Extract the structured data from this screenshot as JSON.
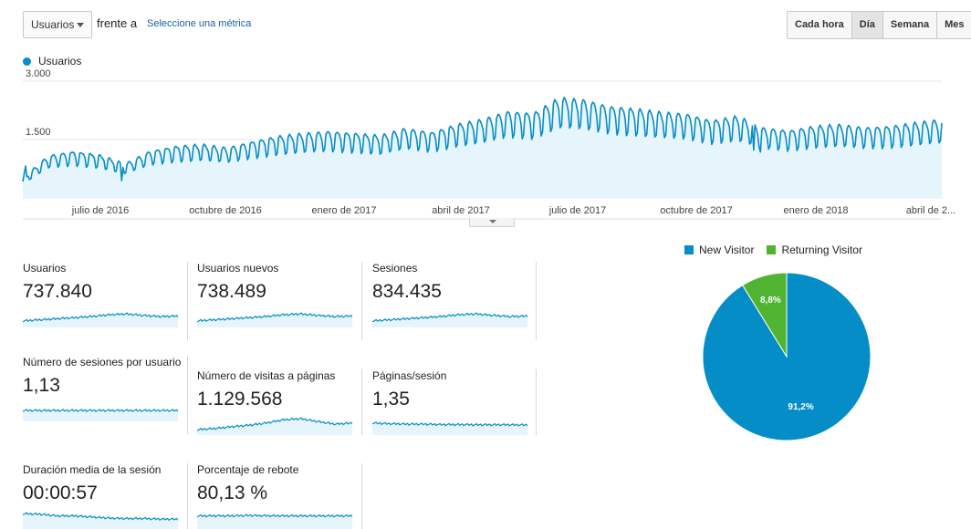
{
  "toolbar": {
    "metric_select": "Usuarios",
    "versus_label": "frente a",
    "select_metric_link": "Seleccione una métrica",
    "granularity": [
      {
        "label": "Cada hora",
        "active": false
      },
      {
        "label": "Día",
        "active": true
      },
      {
        "label": "Semana",
        "active": false
      },
      {
        "label": "Mes",
        "active": false
      }
    ]
  },
  "colors": {
    "line": "#058dc7",
    "area": "#e6f4fb",
    "grid": "#e5e5e5",
    "new_visitor": "#058dc7",
    "returning_visitor": "#50b432"
  },
  "chart_data": [
    {
      "type": "area",
      "series": [
        {
          "name": "Usuarios",
          "values": [
            450,
            970,
            1070,
            990,
            780,
            1080,
            1190,
            1230,
            1150,
            1300,
            1420,
            1480,
            1530,
            1490,
            1430,
            1600,
            1510,
            1690,
            1800,
            1990,
            1950,
            2300,
            2250,
            2110,
            2050,
            1970,
            1930,
            1780,
            1880,
            1610,
            1550,
            1650,
            1680,
            1620,
            1650,
            1730,
            1800
          ]
        }
      ],
      "x_tick_labels": [
        "julio de 2016",
        "octubre de 2016",
        "enero de 2017",
        "abril de 2017",
        "julio de 2017",
        "octubre de 2017",
        "enero de 2018",
        "abril de 2..."
      ],
      "y_tick_labels": [
        "3.000",
        "1.500"
      ],
      "ylim": [
        0,
        3000
      ],
      "grid": true
    },
    {
      "type": "pie",
      "slices": [
        {
          "label": "New Visitor",
          "value": 91.2,
          "display": "91,2%"
        },
        {
          "label": "Returning Visitor",
          "value": 8.8,
          "display": "8,8%"
        }
      ],
      "legend_position": "top"
    }
  ],
  "scorecards": [
    {
      "label": "Usuarios",
      "value": "737.840",
      "spark": [
        0.3,
        0.35,
        0.4,
        0.45,
        0.5,
        0.58,
        0.62,
        0.55,
        0.5,
        0.52
      ]
    },
    {
      "label": "Usuarios nuevos",
      "value": "738.489",
      "spark": [
        0.3,
        0.35,
        0.4,
        0.45,
        0.5,
        0.58,
        0.62,
        0.55,
        0.5,
        0.52
      ]
    },
    {
      "label": "Sesiones",
      "value": "834.435",
      "spark": [
        0.3,
        0.35,
        0.4,
        0.45,
        0.5,
        0.58,
        0.62,
        0.55,
        0.5,
        0.52
      ]
    },
    {
      "label": "Número de sesiones por usuario",
      "value": "1,13",
      "spark": [
        0.5,
        0.5,
        0.5,
        0.5,
        0.5,
        0.5,
        0.5,
        0.5,
        0.5,
        0.5
      ]
    },
    {
      "label": "Número de visitas a páginas",
      "value": "1.129.568",
      "spark": [
        0.25,
        0.3,
        0.38,
        0.45,
        0.55,
        0.7,
        0.75,
        0.62,
        0.5,
        0.55
      ]
    },
    {
      "label": "Páginas/sesión",
      "value": "1,35",
      "spark": [
        0.55,
        0.52,
        0.5,
        0.5,
        0.48,
        0.48,
        0.47,
        0.47,
        0.47,
        0.46
      ]
    },
    {
      "label": "Duración media de la sesión",
      "value": "00:00:57",
      "spark": [
        0.7,
        0.68,
        0.6,
        0.6,
        0.55,
        0.5,
        0.48,
        0.48,
        0.45,
        0.45
      ]
    },
    {
      "label": "Porcentaje de rebote",
      "value": "80,13 %",
      "spark": [
        0.6,
        0.6,
        0.6,
        0.62,
        0.61,
        0.6,
        0.6,
        0.6,
        0.6,
        0.6
      ]
    }
  ]
}
